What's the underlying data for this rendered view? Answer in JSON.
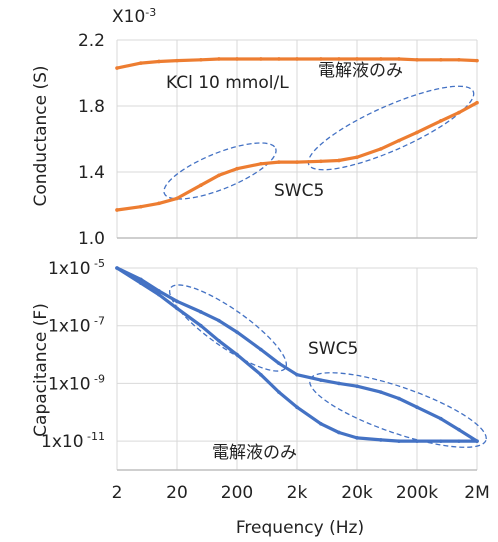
{
  "chart_data": [
    {
      "type": "line",
      "ylabel": "Conductance (S)",
      "y_multiplier": "X10-3",
      "y_multiplier_base": "X10",
      "y_multiplier_exp": "-3",
      "ylim": [
        1.0,
        2.2
      ],
      "yticks": [
        "2.2",
        "1.8",
        "1.4",
        "1.0"
      ],
      "xscale": "log",
      "xlim": [
        2,
        2000000
      ],
      "grid": true,
      "annotations": [
        "KCl 10 mmol/L",
        "電解液のみ",
        "SWC5"
      ],
      "series": [
        {
          "name": "電解液のみ",
          "color": "#ed7d31",
          "x": [
            2,
            5,
            10,
            20,
            50,
            100,
            200,
            500,
            1000,
            2000,
            5000,
            10000,
            20000,
            50000,
            100000,
            200000,
            500000,
            1000000,
            2000000
          ],
          "y": [
            2.03,
            2.06,
            2.07,
            2.075,
            2.08,
            2.085,
            2.085,
            2.085,
            2.085,
            2.085,
            2.085,
            2.085,
            2.085,
            2.085,
            2.085,
            2.08,
            2.08,
            2.08,
            2.075
          ]
        },
        {
          "name": "SWC5",
          "color": "#ed7d31",
          "x": [
            2,
            5,
            10,
            20,
            50,
            100,
            200,
            500,
            1000,
            2000,
            5000,
            10000,
            20000,
            50000,
            100000,
            200000,
            500000,
            1000000,
            2000000
          ],
          "y": [
            1.17,
            1.19,
            1.21,
            1.24,
            1.32,
            1.38,
            1.42,
            1.45,
            1.46,
            1.46,
            1.465,
            1.47,
            1.49,
            1.54,
            1.59,
            1.64,
            1.71,
            1.76,
            1.82
          ]
        }
      ]
    },
    {
      "type": "line",
      "ylabel": "Capacitance (F)",
      "xlabel": "Frequency (Hz)",
      "yscale": "log",
      "ylim": [
        1e-12,
        1e-05
      ],
      "yticks": [
        {
          "base": "1x10",
          "exp": "-5"
        },
        {
          "base": "1x10",
          "exp": "-7"
        },
        {
          "base": "1x10",
          "exp": "-9"
        },
        {
          "base": "1x10",
          "exp": "-11"
        }
      ],
      "xscale": "log",
      "xlim": [
        2,
        2000000
      ],
      "xticks": [
        "2",
        "20",
        "200",
        "2k",
        "20k",
        "200k",
        "2M"
      ],
      "grid": true,
      "annotations": [
        "SWC5",
        "電解液のみ"
      ],
      "series": [
        {
          "name": "SWC5",
          "color": "#4472c4",
          "x": [
            2,
            5,
            10,
            20,
            50,
            100,
            200,
            500,
            1000,
            2000,
            5000,
            10000,
            20000,
            50000,
            100000,
            200000,
            500000,
            1000000,
            2000000
          ],
          "y": [
            1e-05,
            4e-06,
            1.6e-06,
            7e-07,
            3e-07,
            1.5e-07,
            6e-08,
            1.5e-08,
            5e-09,
            2e-09,
            1.3e-09,
            1e-09,
            8e-10,
            5e-10,
            3e-10,
            1.5e-10,
            6e-11,
            2.5e-11,
            1e-11
          ]
        },
        {
          "name": "電解液のみ",
          "color": "#4472c4",
          "x": [
            2,
            5,
            10,
            20,
            50,
            100,
            200,
            500,
            1000,
            2000,
            5000,
            10000,
            20000,
            50000,
            100000,
            200000,
            500000,
            1000000,
            2000000
          ],
          "y": [
            1e-05,
            3e-06,
            1.2e-06,
            4e-07,
            1e-07,
            3e-08,
            1e-08,
            2e-09,
            5e-10,
            1.5e-10,
            4e-11,
            2e-11,
            1.3e-11,
            1.1e-11,
            1e-11,
            1e-11,
            1e-11,
            1e-11,
            1e-11
          ]
        }
      ]
    }
  ]
}
